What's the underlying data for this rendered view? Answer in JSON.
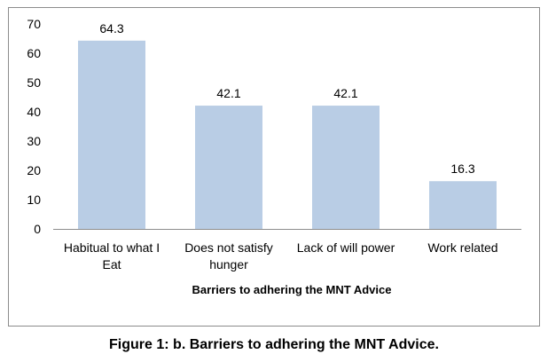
{
  "chart_data": {
    "type": "bar",
    "categories": [
      [
        "Habitual to what I",
        "Eat"
      ],
      [
        "Does not satisfy",
        "hunger"
      ],
      [
        "Lack of will power"
      ],
      [
        "Work related"
      ]
    ],
    "values": [
      64.3,
      42.1,
      42.1,
      16.3
    ],
    "data_labels": [
      "64.3",
      "42.1",
      "42.1",
      "16.3"
    ],
    "title": "",
    "xlabel": "Barriers to adhering the MNT Advice",
    "ylabel": "",
    "ylim": [
      0,
      70
    ],
    "yticks": [
      0,
      10,
      20,
      30,
      40,
      50,
      60,
      70
    ],
    "grid": false,
    "legend": "none",
    "bar_color": "#b9cde5"
  },
  "caption": "Figure 1: b. Barriers to adhering the MNT Advice."
}
